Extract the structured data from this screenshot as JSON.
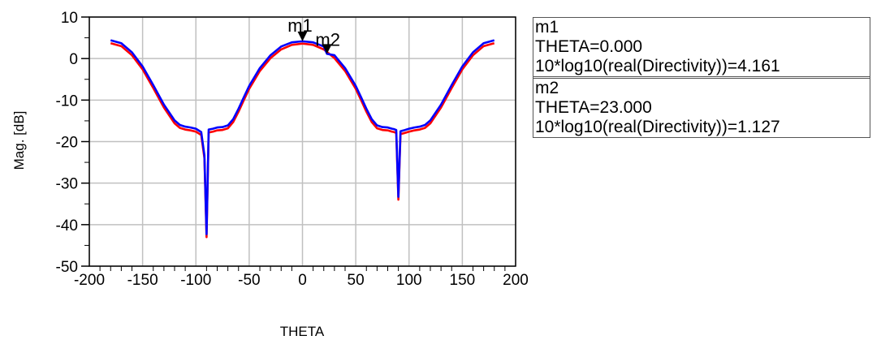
{
  "chart_data": {
    "type": "line",
    "xlabel": "THETA",
    "ylabel": "Mag. [dB]",
    "xlim": [
      -200,
      200
    ],
    "ylim": [
      -50,
      10
    ],
    "xticks": [
      -200,
      -150,
      -100,
      -50,
      0,
      50,
      100,
      150,
      200
    ],
    "yticks": [
      10,
      0,
      -10,
      -20,
      -30,
      -40,
      -50
    ],
    "grid": true,
    "colors": {
      "series_red": "#ff0000",
      "series_blue": "#0000ff",
      "marker": "#000000"
    },
    "series": [
      {
        "color": "#ff0000",
        "x": [
          -180,
          -170,
          -160,
          -150,
          -140,
          -130,
          -120,
          -115,
          -110,
          -105,
          -100,
          -95,
          -92,
          -90,
          -88,
          -86,
          -84,
          -80,
          -75,
          -70,
          -65,
          -60,
          -55,
          -50,
          -40,
          -30,
          -20,
          -10,
          0,
          10,
          20,
          23,
          30,
          40,
          50,
          55,
          60,
          65,
          70,
          75,
          80,
          84,
          86,
          88,
          90,
          92,
          95,
          100,
          105,
          110,
          115,
          120,
          130,
          140,
          150,
          160,
          170,
          180
        ],
        "y": [
          3.7,
          3.0,
          0.8,
          -2.6,
          -7.1,
          -11.8,
          -15.6,
          -16.7,
          -17.1,
          -17.3,
          -17.6,
          -18.4,
          -24.0,
          -43.0,
          -17.8,
          -17.7,
          -17.6,
          -17.3,
          -17.2,
          -16.8,
          -15.3,
          -12.8,
          -10.0,
          -7.3,
          -3.0,
          0.1,
          2.2,
          3.3,
          3.6,
          3.3,
          2.2,
          1.6,
          0.1,
          -3.0,
          -7.3,
          -10.0,
          -12.8,
          -15.3,
          -16.8,
          -17.2,
          -17.3,
          -17.6,
          -17.7,
          -17.9,
          -34.0,
          -18.2,
          -18.0,
          -17.6,
          -17.3,
          -17.1,
          -16.7,
          -15.6,
          -11.8,
          -7.1,
          -2.6,
          0.8,
          3.0,
          3.7
        ]
      },
      {
        "color": "#0000ff",
        "x": [
          -180,
          -170,
          -160,
          -150,
          -140,
          -130,
          -120,
          -115,
          -110,
          -105,
          -100,
          -95,
          -92,
          -90,
          -88,
          -86,
          -84,
          -80,
          -75,
          -70,
          -65,
          -60,
          -55,
          -50,
          -40,
          -30,
          -20,
          -10,
          0,
          10,
          20,
          23,
          30,
          40,
          50,
          55,
          60,
          65,
          70,
          75,
          80,
          84,
          86,
          88,
          90,
          92,
          95,
          100,
          105,
          110,
          115,
          120,
          130,
          140,
          150,
          160,
          170,
          180
        ],
        "y": [
          4.4,
          3.7,
          1.5,
          -1.9,
          -6.4,
          -11.1,
          -14.9,
          -16.0,
          -16.4,
          -16.6,
          -16.9,
          -17.7,
          -23.3,
          -42.3,
          -17.1,
          -17.0,
          -16.9,
          -16.6,
          -16.5,
          -16.1,
          -14.6,
          -12.1,
          -9.3,
          -6.6,
          -2.3,
          0.8,
          2.9,
          3.9,
          4.161,
          3.9,
          2.9,
          1.127,
          0.8,
          -2.3,
          -6.6,
          -9.3,
          -12.1,
          -14.6,
          -16.1,
          -16.5,
          -16.6,
          -16.9,
          -17.0,
          -17.2,
          -33.3,
          -17.5,
          -17.3,
          -16.9,
          -16.6,
          -16.4,
          -16.0,
          -14.9,
          -11.1,
          -6.4,
          -1.9,
          1.5,
          3.7,
          4.4
        ]
      }
    ],
    "markers": [
      {
        "name": "m1",
        "x": 0,
        "y": 4.161,
        "lines": [
          "m1",
          "THETA=0.000",
          "10*log10(real(Directivity))=4.161"
        ]
      },
      {
        "name": "m2",
        "x": 23,
        "y": 1.127,
        "lines": [
          "m2",
          "THETA=23.000",
          "10*log10(real(Directivity))=1.127"
        ]
      }
    ]
  }
}
